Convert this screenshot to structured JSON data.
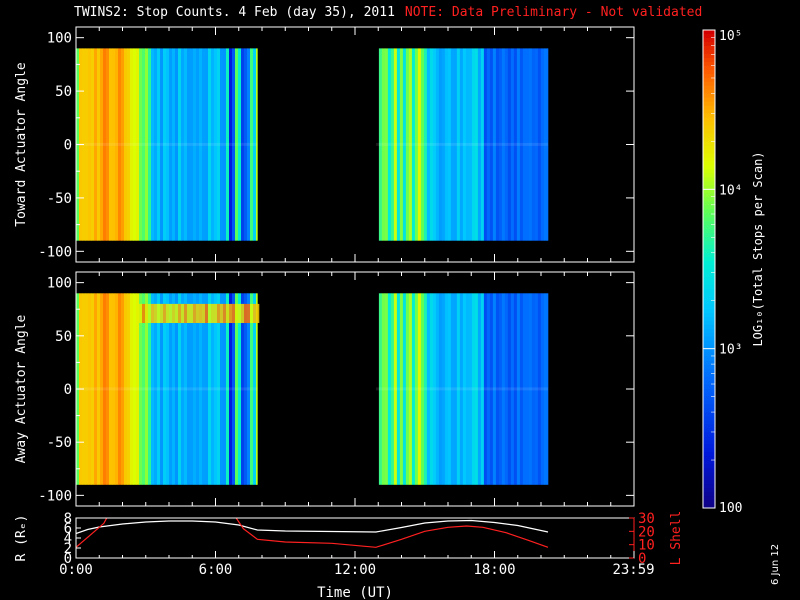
{
  "title": {
    "main": "TWINS2: Stop Counts.  4 Feb (day  35), 2011",
    "note": "NOTE: Data Preliminary - Not validated"
  },
  "side_date": "6 Jun 12",
  "colors": {
    "background": "#000000",
    "axes": "#ffffff",
    "note": "#ff2020",
    "r_line": "#ffffff",
    "lshell_line": "#ff2020"
  },
  "chart_data": [
    {
      "type": "heatmap",
      "name": "toward",
      "ylabel": "Toward Actuator Angle",
      "ylim": [
        -110,
        110
      ],
      "yticks": [
        "100",
        "50",
        "0",
        "-50",
        "-100"
      ],
      "ytick_values": [
        100,
        50,
        0,
        -50,
        -100
      ],
      "data_ylim": [
        -90,
        90
      ],
      "segments_hours": [
        [
          0.0,
          7.8
        ],
        [
          12.9,
          20.3
        ]
      ],
      "xlim_hours": [
        0,
        24
      ]
    },
    {
      "type": "heatmap",
      "name": "away",
      "ylabel": "Away Actuator Angle",
      "ylim": [
        -110,
        110
      ],
      "yticks": [
        "100",
        "50",
        "0",
        "-50",
        "-100"
      ],
      "ytick_values": [
        100,
        50,
        0,
        -50,
        -100
      ],
      "data_ylim": [
        -90,
        90
      ],
      "segments_hours": [
        [
          0.0,
          7.8
        ],
        [
          12.9,
          20.3
        ]
      ],
      "xlim_hours": [
        0,
        24
      ]
    },
    {
      "type": "line",
      "name": "ephemeris",
      "ylabel_left": "R (Rₑ)",
      "ylabel_right": "L Shell",
      "left_ylim": [
        0,
        8
      ],
      "left_yticks": [
        "0",
        "2",
        "4",
        "6",
        "8"
      ],
      "left_ytick_values": [
        0,
        2,
        4,
        6,
        8
      ],
      "right_ylim": [
        0,
        30
      ],
      "right_yticks": [
        "0",
        "10",
        "20",
        "30"
      ],
      "right_ytick_values": [
        0,
        10,
        20,
        30
      ],
      "xlabel": "Time (UT)",
      "xticks": [
        "0:00",
        "6:00",
        "12:00",
        "18:00",
        "23:59"
      ],
      "xtick_hours": [
        0,
        6,
        12,
        18,
        23.98
      ],
      "xlim_hours": [
        0,
        24
      ],
      "r_series": {
        "x": [
          0.0,
          0.5,
          1.0,
          2.0,
          3.0,
          4.0,
          5.0,
          6.0,
          7.0,
          7.8,
          9.0,
          11.0,
          12.9,
          14.0,
          15.0,
          16.0,
          17.0,
          18.0,
          19.0,
          20.3
        ],
        "y": [
          4.9,
          5.7,
          6.2,
          6.8,
          7.2,
          7.4,
          7.4,
          7.2,
          6.6,
          5.6,
          5.4,
          5.3,
          5.2,
          6.1,
          7.0,
          7.4,
          7.5,
          7.1,
          6.5,
          5.2
        ]
      },
      "lshell_series": {
        "x": [
          0.0,
          0.6,
          1.2,
          1.35,
          6.85,
          7.2,
          7.8,
          9.0,
          11.0,
          12.9,
          14.0,
          15.0,
          16.0,
          16.8,
          17.5,
          18.5,
          19.5,
          20.3
        ],
        "y": [
          8,
          17,
          26,
          31,
          31,
          22,
          14,
          12,
          11,
          8,
          14,
          20,
          23,
          24,
          23,
          19,
          13,
          8
        ]
      }
    },
    {
      "type": "colorbar",
      "name": "colorbar",
      "label": "LOG₁₀(Total Stops per Scan)",
      "scale": "log",
      "range": [
        100,
        100000
      ],
      "tick_labels": [
        "10⁵",
        "10⁴",
        "10³",
        "100"
      ],
      "tick_values": [
        100000,
        10000,
        1000,
        100
      ]
    }
  ]
}
